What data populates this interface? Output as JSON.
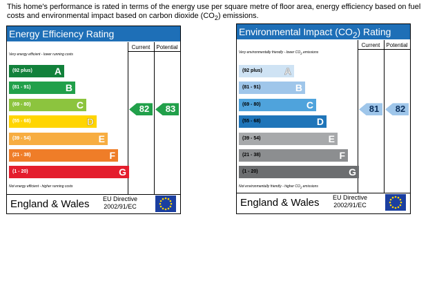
{
  "intro_text_html": "This home's performance is rated in terms of the energy use per square metre of floor area, energy efficiency based on fuel costs and environmental impact based on carbon dioxide (CO<sub>2</sub>) emissions.",
  "headers": {
    "current": "Current",
    "potential": "Potential"
  },
  "footer": {
    "country": "England & Wales",
    "directive_line1": "EU Directive",
    "directive_line2": "2002/91/EC"
  },
  "eu_flag_icon": "eu-flag-icon",
  "energy": {
    "title": "Energy Efficiency Rating",
    "title_color": "#1e6fb7",
    "top_caption": "Very energy efficient - lower running costs",
    "bottom_caption": "Not energy efficient - higher running costs",
    "bands": [
      {
        "range": "(92 plus)",
        "letter": "A",
        "color": "#12813b"
      },
      {
        "range": "(81 - 91)",
        "letter": "B",
        "color": "#21a04a"
      },
      {
        "range": "(69 - 80)",
        "letter": "C",
        "color": "#8cc43e"
      },
      {
        "range": "(55 - 68)",
        "letter": "D",
        "color": "#ffd500"
      },
      {
        "range": "(39 - 54)",
        "letter": "E",
        "color": "#f7ad41"
      },
      {
        "range": "(21 - 38)",
        "letter": "F",
        "color": "#ef7d28"
      },
      {
        "range": "(1 - 20)",
        "letter": "G",
        "color": "#e41d2d"
      }
    ],
    "current": {
      "value": "82",
      "band": "B",
      "color": "#21a04a"
    },
    "potential": {
      "value": "83",
      "band": "B",
      "color": "#21a04a"
    }
  },
  "environment": {
    "title_html": "Environmental Impact (CO<sub>2</sub>) Rating",
    "title_color": "#1e6fb7",
    "top_caption_html": "Very environmentally friendly - lower CO<sub>2</sub> emissions",
    "bottom_caption_html": "Not environmentally friendly - higher CO<sub>2</sub> emissions",
    "bands": [
      {
        "range": "(92 plus)",
        "letter": "A",
        "color": "#cfe3f4"
      },
      {
        "range": "(81 - 91)",
        "letter": "B",
        "color": "#9fc6ea"
      },
      {
        "range": "(69 - 80)",
        "letter": "C",
        "color": "#4fa3dc"
      },
      {
        "range": "(55 - 68)",
        "letter": "D",
        "color": "#1f75b9"
      },
      {
        "range": "(39 - 54)",
        "letter": "E",
        "color": "#a7a9ab"
      },
      {
        "range": "(21 - 38)",
        "letter": "F",
        "color": "#8c8e90"
      },
      {
        "range": "(1 - 20)",
        "letter": "G",
        "color": "#6c6e70"
      }
    ],
    "current": {
      "value": "81",
      "band": "B",
      "color": "#9fc6ea"
    },
    "potential": {
      "value": "82",
      "band": "B",
      "color": "#9fc6ea"
    }
  }
}
